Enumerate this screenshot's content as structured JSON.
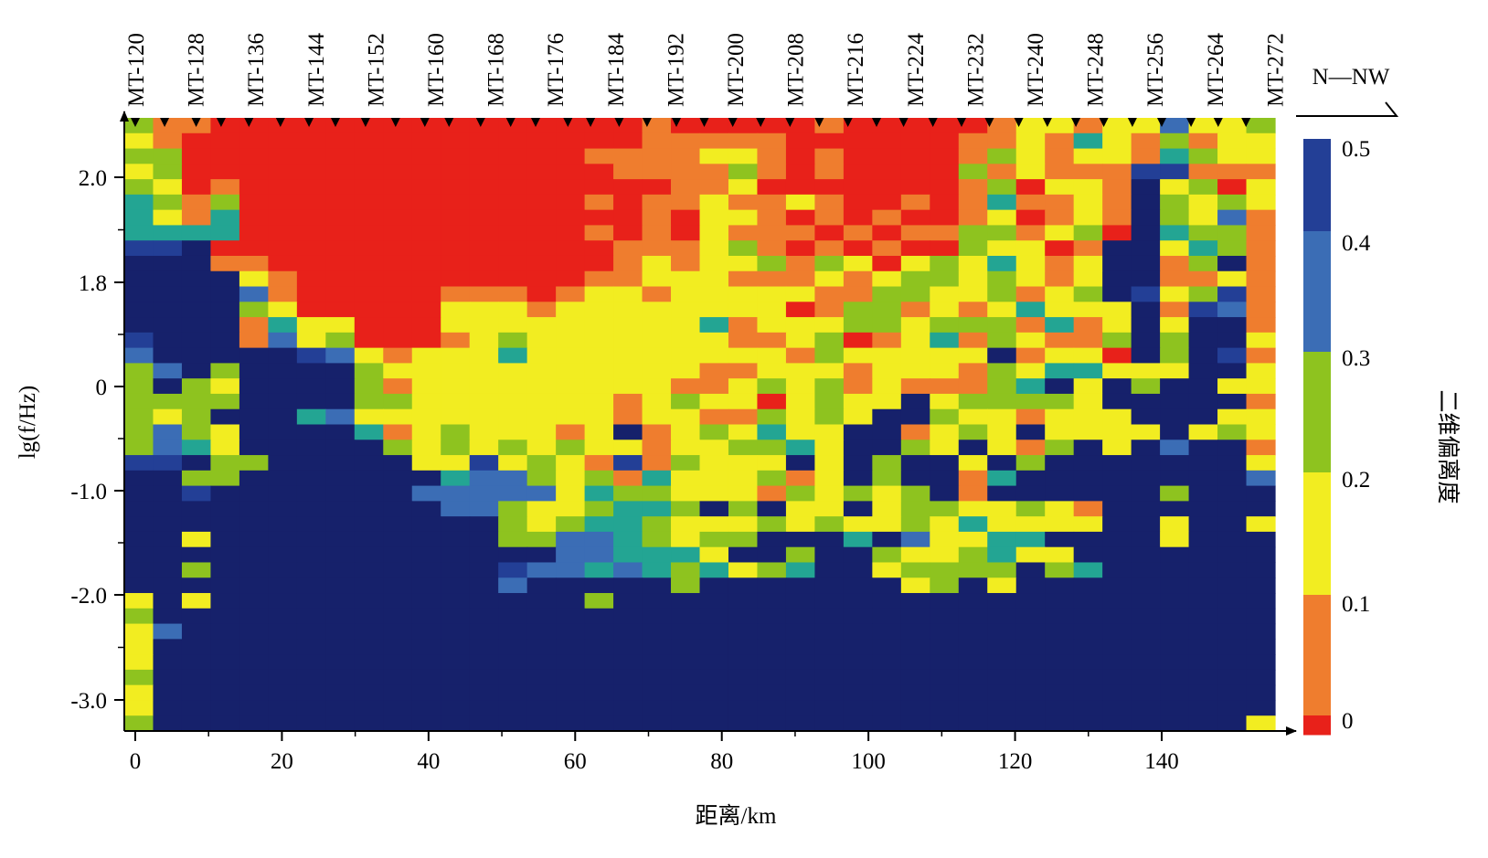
{
  "chart_data": {
    "type": "heatmap",
    "title": "",
    "xlabel": "距离/km",
    "ylabel": "lg(f/Hz)",
    "x_ticks": [
      0,
      20,
      40,
      60,
      80,
      100,
      120,
      140
    ],
    "y_ticks": [
      2.0,
      1.8,
      0,
      -1.0,
      -2.0,
      -3.0
    ],
    "y_tick_labels": [
      "2.0",
      "1.8",
      "0",
      "-1.0",
      "-2.0",
      "-3.0"
    ],
    "direction_label": "N—NW",
    "station_labels": [
      "MT-120",
      "MT-128",
      "MT-136",
      "MT-144",
      "MT-152",
      "MT-160",
      "MT-168",
      "MT-176",
      "MT-184",
      "MT-192",
      "MT-200",
      "MT-208",
      "MT-216",
      "MT-224",
      "MT-232",
      "MT-240",
      "MT-248",
      "MT-256",
      "MT-264",
      "MT-272"
    ],
    "station_distances_km": [
      0,
      4,
      8.3,
      11.7,
      15.5,
      19.8,
      23.7,
      27.3,
      31.4,
      35.5,
      39.5,
      42.8,
      47.1,
      51.2,
      54.6,
      59,
      62.1,
      66,
      69.8,
      73.8,
      77.6,
      81.5,
      85.3,
      89.3,
      93.3,
      97.2,
      101.1,
      104.8,
      108.8,
      112.7,
      116.5,
      120.5,
      124.4,
      128.3,
      132.1,
      136,
      140,
      144,
      147.7,
      151.5
    ],
    "colorbar": {
      "label": "二维偏离度",
      "tick_labels": [
        "0.5",
        "0.4",
        "0.3",
        "0.2",
        "0.1",
        "0"
      ],
      "tick_values": [
        0.5,
        0.4,
        0.3,
        0.2,
        0.1,
        0
      ]
    },
    "n_columns": 40,
    "n_rows": 40,
    "value_scale": "0 = 0.00, 1 = 0.10, 2 = 0.15, 3 = 0.22, 4 = 0.28, 5 = 0.35, 6 = 0.45, 7 = 0.50 (skew), one row per frequency step from top to bottom",
    "rows": [
      "3110000000000000001000001000001221225223",
      "2100000000000000001111100000011214213122",
      "3300000000000000111122101000013212214322",
      "2300000000000000011113101000031211166111",
      "3201000000000000000112000000013022172302",
      "4313000000000000101121121001014112173232",
      "4214000000000000001022101010012012173251",
      "4444000000000000101021110101133123074331",
      "6670000000000000011123101010032201772431",
      "7771100000000000012122313202324212771371",
      "7777210000000000112221112123323212771121",
      "7777510000011101221222221133223123762361",
      "7777320000022212222222201331212422271651",
      "7777142200022222222241222332333141272771",
      "6777152300012322222221123012413211373772",
      "5777776521222422222222213222227122073761",
      "3573777732222222222211222122213244222772",
      "3732777731222222222112323121113472737722",
      "3333777733222222212322023227233332777771",
      "3237774522222222212211323277322122277722",
      "3532777741232221271232422771232722227232",
      "3542777773232323221223342773272137275771",
      "6673377777226232161322272737727377777772",
      "7733777777745532314222312737714777777775",
      "7767777777555552433222132323717777773777",
      "7777777777755322344373722723322321777777",
      "7777777777777323443222323223242222772772",
      "7727777777777335543233777475224477772777",
      "7777777777777775544427737732234227777777",
      "7737777777777655454342347723333734777777",
      "7777777777777577777377777772372777777777",
      "2727777777777777377777777777777777777777",
      "3777777777777777777777777777777777777777",
      "2577777777777777777777777777777777777777",
      "2777777777777777777777777777777777777777",
      "2777777777777777777777777777777777777777",
      "3777777777777777777777777777777777777777",
      "2777777777777777777777777777777777777777",
      "2777777777777777777777777777777777777777",
      "3777777777777777777777777777777777777772"
    ]
  }
}
